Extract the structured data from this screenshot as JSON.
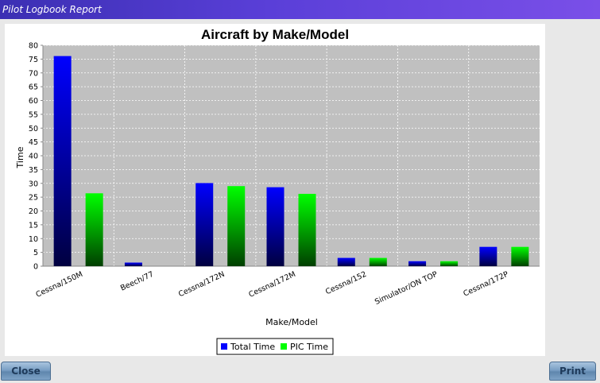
{
  "window": {
    "title": "Pilot Logbook Report"
  },
  "buttons": {
    "close": "Close",
    "print": "Print"
  },
  "colors": {
    "series1": "#0000ff",
    "series2": "#00ff00",
    "plot_background": "#c0c0c0",
    "titlebar": "#4a36c9"
  },
  "chart_data": {
    "type": "bar",
    "title": "Aircraft by Make/Model",
    "xlabel": "Make/Model",
    "ylabel": "Time",
    "ylim": [
      0,
      80
    ],
    "yticks": [
      0,
      5,
      10,
      15,
      20,
      25,
      30,
      35,
      40,
      45,
      50,
      55,
      60,
      65,
      70,
      75,
      80
    ],
    "categories": [
      "Cessna/150M",
      "Beech/77",
      "Cessna/172N",
      "Cessna/172M",
      "Cessna/152",
      "Simulator/ON TOP",
      "Cessna/172P"
    ],
    "series": [
      {
        "name": "Total Time",
        "values": [
          76.1,
          1.3,
          30.1,
          28.6,
          3.0,
          1.8,
          7.0
        ]
      },
      {
        "name": "PIC Time",
        "values": [
          26.4,
          0,
          29.0,
          26.2,
          3.0,
          1.8,
          7.0
        ]
      }
    ],
    "grid": true,
    "legend_position": "bottom"
  }
}
